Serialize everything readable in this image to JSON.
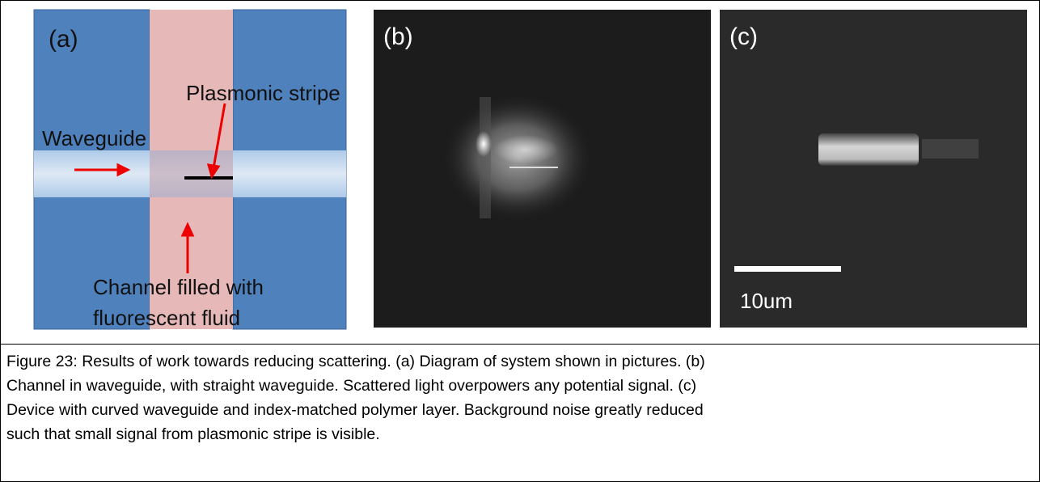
{
  "figure": {
    "panels": [
      {
        "label": "(a)",
        "annotations": [
          "Plasmonic stripe",
          "Waveguide",
          "Channel filled with",
          "fluorescent fluid"
        ]
      },
      {
        "label": "(b)"
      },
      {
        "label": "(c)",
        "scale_bar": "10um"
      }
    ],
    "caption_lines": [
      "Figure 23: Results of work towards reducing scattering.  (a) Diagram of system shown in pictures.  (b)",
      "Channel in waveguide, with straight waveguide.  Scattered light overpowers any potential signal. (c)",
      "Device with curved waveguide and index-matched polymer layer.  Background noise greatly reduced",
      "such that small signal from plasmonic stripe is visible."
    ]
  }
}
